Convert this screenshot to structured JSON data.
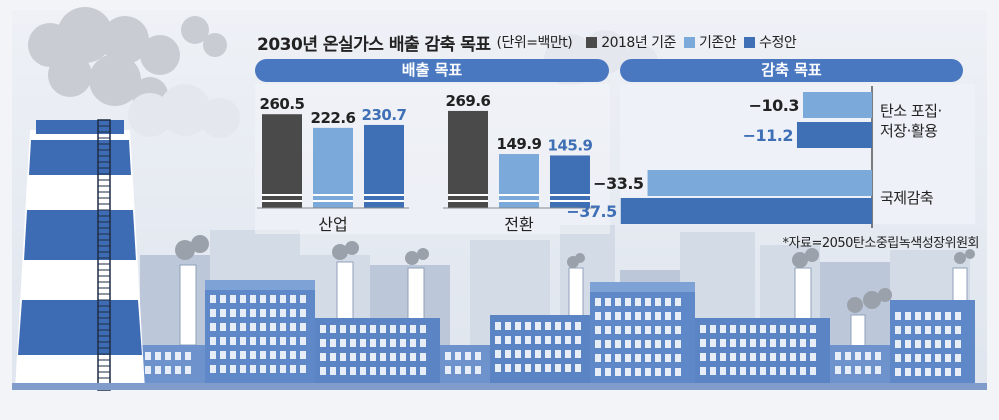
{
  "title": "2030년 온실가스 배출 감축 목표",
  "unit": "(단위=백만t)",
  "legend": [
    {
      "label": "2018년 기준",
      "color": "#4a4a4a"
    },
    {
      "label": "기존안",
      "color": "#7aa9da"
    },
    {
      "label": "수정안",
      "color": "#3f6fb5"
    }
  ],
  "panels": {
    "emission": "배출 목표",
    "reduction": "감축 목표"
  },
  "source": "*자료=2050탄소중립녹색성장위원회",
  "chart_data": [
    {
      "type": "bar",
      "title": "배출 목표",
      "categories": [
        "산업",
        "전환"
      ],
      "series": [
        {
          "name": "2018년 기준",
          "values": [
            260.5,
            269.6
          ],
          "color": "#4a4a4a"
        },
        {
          "name": "기존안",
          "values": [
            222.6,
            149.9
          ],
          "color": "#7aa9da"
        },
        {
          "name": "수정안",
          "values": [
            230.7,
            145.9
          ],
          "color": "#3f6fb5"
        }
      ],
      "value_labels": [
        [
          "260.5",
          "222.6",
          "230.7"
        ],
        [
          "269.6",
          "149.9",
          "145.9"
        ]
      ]
    },
    {
      "type": "bar",
      "orientation": "horizontal",
      "title": "감축 목표",
      "categories": [
        "탄소 포집·저장·활용",
        "국제감축"
      ],
      "category_lines": [
        [
          "탄소 포집·",
          "저장·활용"
        ],
        [
          "국제감축"
        ]
      ],
      "series": [
        {
          "name": "기존안",
          "values": [
            -10.3,
            -33.5
          ],
          "color": "#7aa9da"
        },
        {
          "name": "수정안",
          "values": [
            -11.2,
            -37.5
          ],
          "color": "#3f6fb5"
        }
      ],
      "value_labels": [
        [
          "−10.3",
          "−11.2"
        ],
        [
          "−33.5",
          "−37.5"
        ]
      ]
    }
  ]
}
